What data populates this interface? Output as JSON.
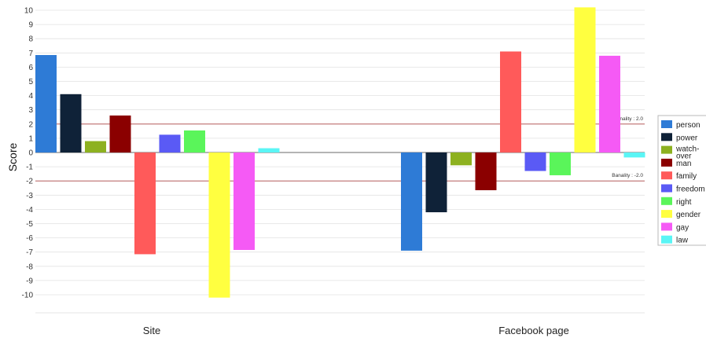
{
  "chart_data": {
    "type": "bar",
    "title": "",
    "ylabel": "Score",
    "xlabel": "",
    "ylim": [
      -11,
      10.5
    ],
    "yticks": [
      10,
      9,
      8,
      7,
      6,
      5,
      4,
      3,
      2,
      1,
      0,
      -1,
      -2,
      -3,
      -4,
      -5,
      -6,
      -7,
      -8,
      -9,
      -10
    ],
    "categories": [
      "Site",
      "Facebook page"
    ],
    "grid": true,
    "legend_position": "right",
    "reference_lines": [
      {
        "label": "Banality : 2.0",
        "value": 2.0,
        "color": "#b04a4a"
      },
      {
        "label": "Banality : -2.0",
        "value": -2.0,
        "color": "#b04a4a"
      }
    ],
    "series": [
      {
        "name": "person",
        "color": "#2e7bd6",
        "values": [
          6.85,
          -6.9
        ]
      },
      {
        "name": "power",
        "color": "#0f2238",
        "values": [
          4.1,
          -4.2
        ]
      },
      {
        "name": "watch-over",
        "color": "#8db120",
        "values": [
          0.8,
          -0.9
        ]
      },
      {
        "name": "man",
        "color": "#8b0000",
        "values": [
          2.6,
          -2.65
        ]
      },
      {
        "name": "family",
        "color": "#ff5a5a",
        "values": [
          -7.15,
          7.1
        ]
      },
      {
        "name": "freedom",
        "color": "#5a5af5",
        "values": [
          1.25,
          -1.3
        ]
      },
      {
        "name": "right",
        "color": "#5af55a",
        "values": [
          1.55,
          -1.6
        ]
      },
      {
        "name": "gender",
        "color": "#ffff40",
        "values": [
          -10.2,
          10.2
        ]
      },
      {
        "name": "gay",
        "color": "#f55af5",
        "values": [
          -6.85,
          6.8
        ]
      },
      {
        "name": "law",
        "color": "#5af5f5",
        "values": [
          0.3,
          -0.35
        ]
      }
    ]
  }
}
